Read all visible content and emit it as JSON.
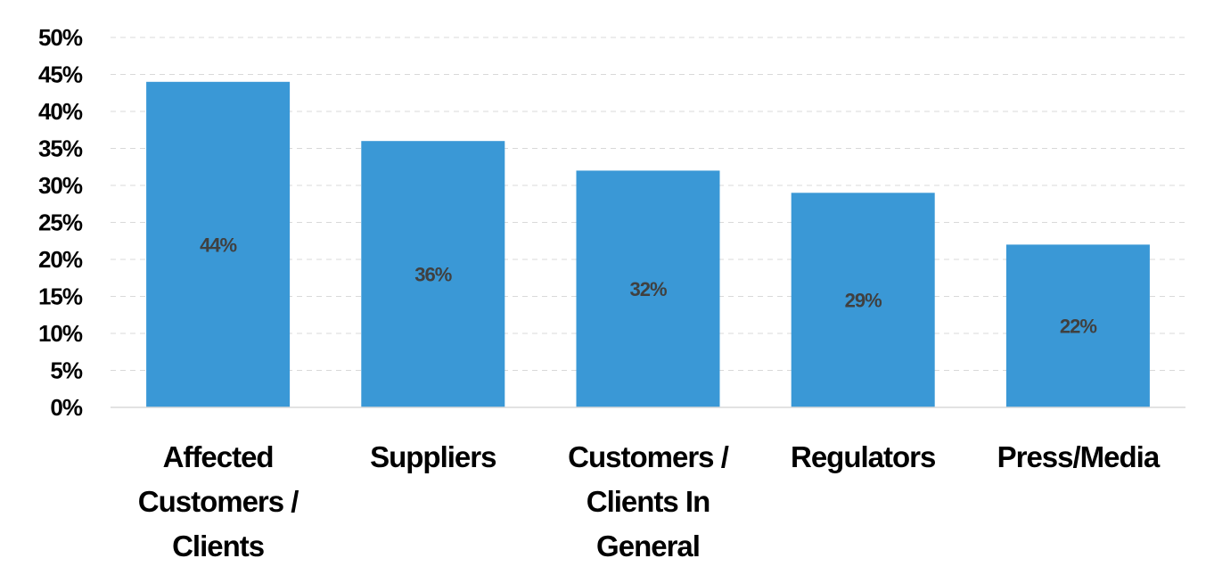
{
  "chart_data": {
    "type": "bar",
    "title": "",
    "xlabel": "",
    "ylabel": "",
    "categories": [
      [
        "Affected",
        "Customers /",
        "Clients"
      ],
      [
        "Suppliers"
      ],
      [
        "Customers /",
        "Clients In",
        "General"
      ],
      [
        "Regulators"
      ],
      [
        "Press/Media"
      ]
    ],
    "values": [
      44,
      36,
      32,
      29,
      22
    ],
    "data_labels": [
      "44%",
      "36%",
      "32%",
      "29%",
      "22%"
    ],
    "ylim": [
      0,
      50
    ],
    "y_ticks": [
      0,
      5,
      10,
      15,
      20,
      25,
      30,
      35,
      40,
      45,
      50
    ],
    "y_tick_labels": [
      "0%",
      "5%",
      "10%",
      "15%",
      "20%",
      "25%",
      "30%",
      "35%",
      "40%",
      "45%",
      "50%"
    ],
    "grid": true,
    "legend": "none",
    "bar_color": "#3a98d6"
  }
}
